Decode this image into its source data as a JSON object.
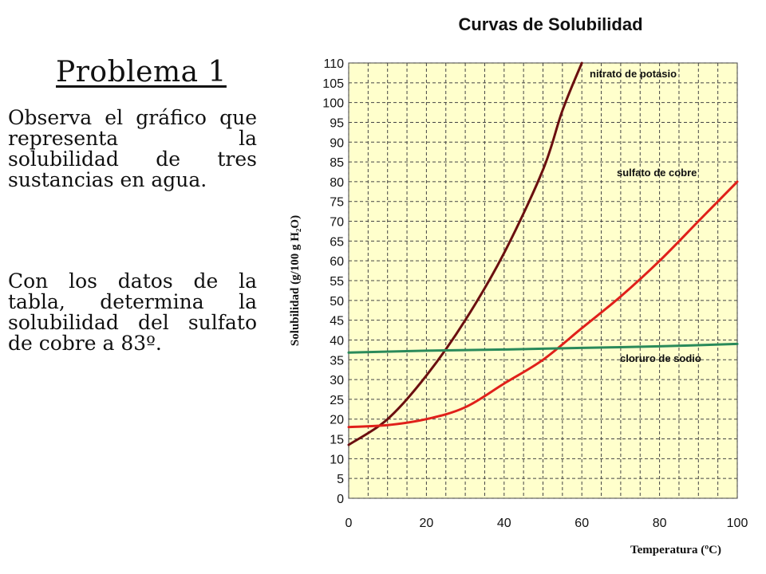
{
  "problem": {
    "title": "Problema 1",
    "paragraph_1": "Observa el gráfico que representa la solubilidad de tres sustancias en agua.",
    "paragraph_2": "Con los datos de la tabla, determina la solubilidad del sulfato de cobre a 83º."
  },
  "chart_data": {
    "type": "line",
    "title": "Curvas de Solubilidad",
    "xlabel": "Temperatura (ºC)",
    "ylabel": "Solubilidad (g/100 g H₂O)",
    "xlim": [
      0,
      100
    ],
    "ylim": [
      0,
      110
    ],
    "x_ticks": [
      0,
      20,
      40,
      60,
      80,
      100
    ],
    "y_ticks": [
      0,
      5,
      10,
      15,
      20,
      25,
      30,
      35,
      40,
      45,
      50,
      55,
      60,
      65,
      70,
      75,
      80,
      85,
      90,
      95,
      100,
      105,
      110
    ],
    "grid": true,
    "series": [
      {
        "name": "nitrato de potasio",
        "color": "#6b0f0f",
        "x": [
          0,
          10,
          20,
          30,
          40,
          50,
          55,
          60
        ],
        "y": [
          13.5,
          20,
          31,
          45,
          62,
          83,
          98,
          110
        ]
      },
      {
        "name": "sulfato de cobre",
        "color": "#e0201a",
        "x": [
          0,
          10,
          20,
          30,
          40,
          50,
          60,
          70,
          80,
          90,
          100
        ],
        "y": [
          18,
          18.5,
          20,
          23,
          29,
          35,
          43,
          51,
          60,
          70,
          80
        ]
      },
      {
        "name": "cloruro de sodio",
        "color": "#2a8a5a",
        "x": [
          0,
          20,
          40,
          60,
          80,
          100
        ],
        "y": [
          36.8,
          37.3,
          37.6,
          38,
          38.4,
          39
        ]
      }
    ]
  }
}
